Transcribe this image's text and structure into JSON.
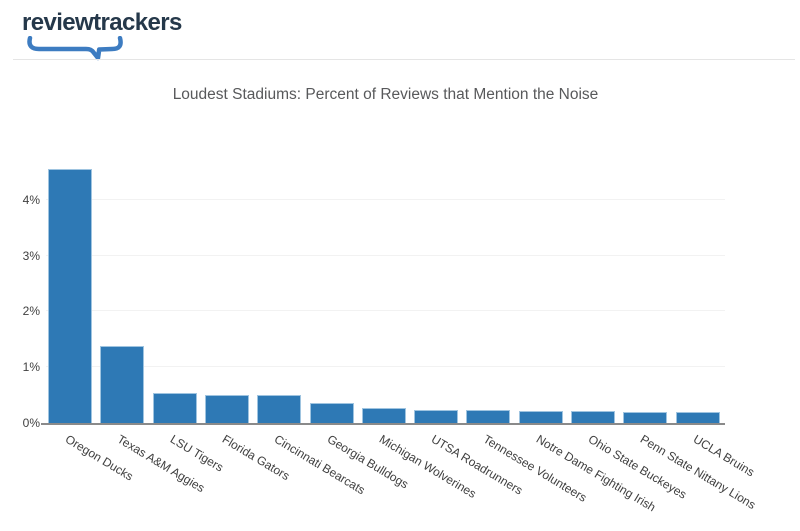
{
  "header": {
    "logo_text": "reviewtrackers"
  },
  "colors": {
    "bar_fill": "#2e79b5",
    "bar_border": "#9fc4e0",
    "logo_navy": "#25384a",
    "logo_blue": "#3d7cc1",
    "title_text": "#58595b",
    "axis_label_text": "#404040",
    "gridline": "#f2f2f2",
    "axis_line": "#8a8a8a",
    "header_divider": "#e5e5e5"
  },
  "chart_data": {
    "type": "bar",
    "title": "Loudest Stadiums: Percent of Reviews that Mention the Noise",
    "categories": [
      "Oregon Ducks",
      "Texas A&M Aggies",
      "LSU Tigers",
      "Florida Gators",
      "Cincinnati Bearcats",
      "Georgia Bulldogs",
      "Michigan Wolverines",
      "UTSA Roadrunners",
      "Tennessee Volunteers",
      "Notre Dame Fighting Irish",
      "Ohio State Buckeyes",
      "Penn State Nittany Lions",
      "UCLA Bruins"
    ],
    "values": [
      4.55,
      1.38,
      0.53,
      0.51,
      0.5,
      0.35,
      0.27,
      0.24,
      0.23,
      0.22,
      0.21,
      0.2,
      0.19
    ],
    "unit": "%",
    "xlabel": "",
    "ylabel": "",
    "y_ticks": [
      "0%",
      "1%",
      "2%",
      "3%",
      "4%"
    ],
    "y_tick_values": [
      0,
      1,
      2,
      3,
      4
    ],
    "ylim": [
      0,
      4.84
    ],
    "grid": true,
    "legend": "none",
    "x_label_rotation_deg": 31
  }
}
